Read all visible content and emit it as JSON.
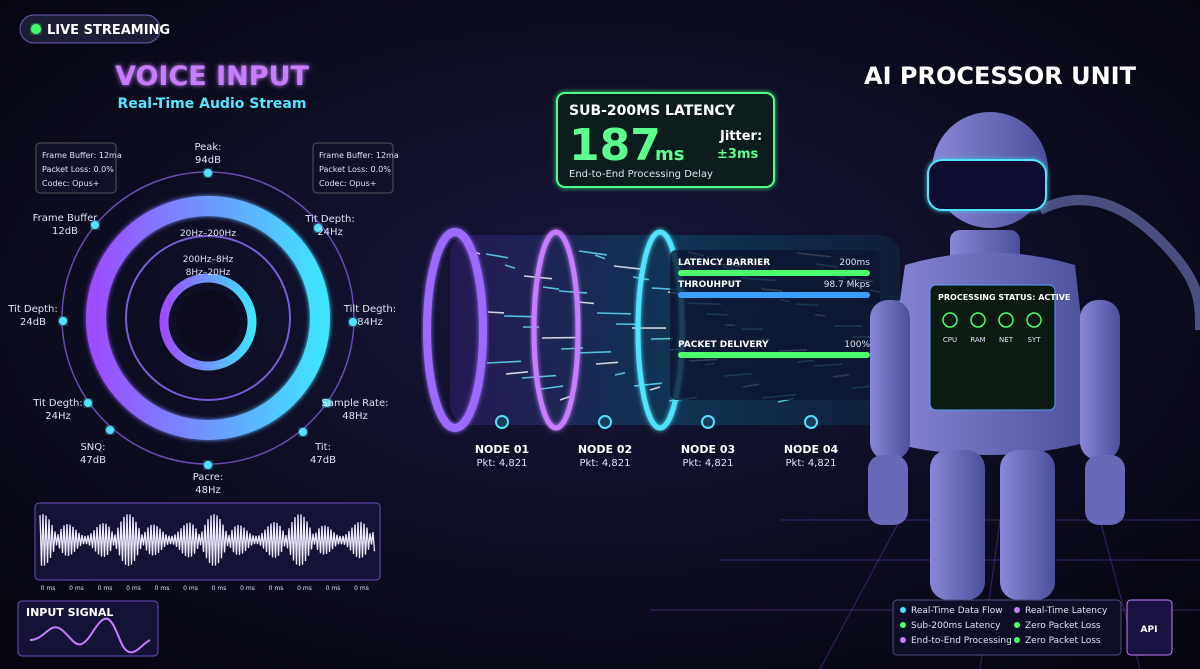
{
  "badge": "LIVE STREAMING",
  "voice": {
    "title": "VOICE INPUT",
    "subtitle": "Real-Time Audio Stream",
    "info_left": [
      "Frame Buffer: 12ma",
      "Packet Loss: 0.0%",
      "Codec: Opus+"
    ],
    "info_right": [
      "Frame Buffer: 12ma",
      "Packet Loss: 0.0%",
      "Codec: Opus+"
    ],
    "bands": [
      "20Hz–200Hz",
      "200Hz–8Hz",
      "8Hz–20Hz"
    ],
    "ring_labels": [
      {
        "label": "Peak:",
        "value": "94dB"
      },
      {
        "label": "Tit Depth:",
        "value": "24Hz"
      },
      {
        "label": "Tilt Degth:",
        "value": "84Hz"
      },
      {
        "label": "Sample Rate:",
        "value": "48Hz"
      },
      {
        "label": "Tit:",
        "value": "47dB"
      },
      {
        "label": "Pacre:",
        "value": "48Hz"
      },
      {
        "label": "SNQ:",
        "value": "47dB"
      },
      {
        "label": "Tit Degth:",
        "value": "24Hz"
      },
      {
        "label": "Tit Depth:",
        "value": "24dB"
      },
      {
        "label": "Frame Buffer",
        "value": "12dB"
      }
    ],
    "wave_ticks": [
      "0 ms",
      "0 ms",
      "0 ms",
      "0 ms",
      "0 ms",
      "0 ms",
      "0 ms",
      "0 ms",
      "0 ms",
      "0 ms",
      "0 ms",
      "0 ms"
    ],
    "input_signal": "INPUT SIGNAL"
  },
  "latency": {
    "heading": "SUB-200MS LATENCY",
    "value": "187",
    "unit": "ms",
    "jitter_label": "Jitter:",
    "jitter_value": "±3ms",
    "caption": "End-to-End Processing Delay"
  },
  "pipeline": {
    "metrics": [
      {
        "name": "LATENCY BARRIER",
        "value": "200ms"
      },
      {
        "name": "THROUHPUT",
        "value": "98.7 Mkps"
      },
      {
        "name": "PACKET DELIVERY",
        "value": "100%"
      }
    ],
    "nodes": [
      {
        "name": "NODE 01",
        "packets": "Pkt: 4,821"
      },
      {
        "name": "NODE 02",
        "packets": "Pkt: 4,821"
      },
      {
        "name": "NODE 03",
        "packets": "Pkt: 4,821"
      },
      {
        "name": "NODE 04",
        "packets": "Pkt: 4,821"
      }
    ]
  },
  "processor": {
    "title": "AI PROCESSOR UNIT",
    "status": "PROCESSING STATUS: ACTIVE",
    "gauges": [
      "CPU",
      "RAM",
      "NET",
      "SYT"
    ],
    "legend": [
      "Real-Time Data Flow",
      "Real-Time Latency",
      "Sub-200ms Latency",
      "Zero Packet Loss",
      "End-to-End Processing",
      "Zero Packet Loss"
    ],
    "qr_label": "API"
  }
}
